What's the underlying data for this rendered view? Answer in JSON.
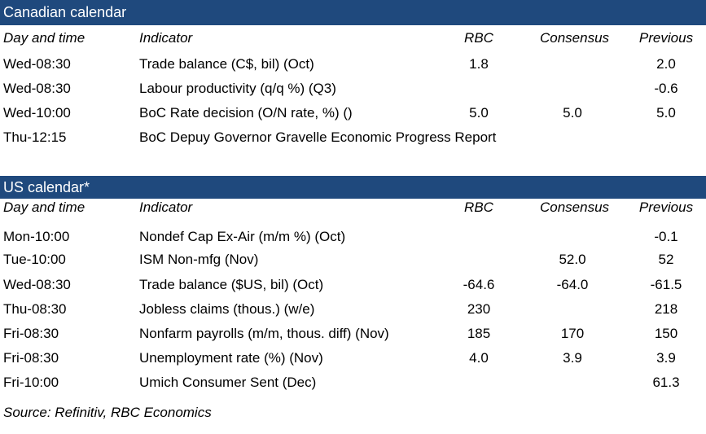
{
  "canadian": {
    "title": "Canadian calendar",
    "headers": {
      "day": "Day and time",
      "indicator": "Indicator",
      "rbc": "RBC",
      "consensus": "Consensus",
      "previous": "Previous"
    },
    "rows": [
      {
        "day": "Wed-08:30",
        "indicator": "Trade balance (C$, bil) (Oct)",
        "rbc": "1.8",
        "consensus": "",
        "previous": "2.0"
      },
      {
        "day": "Wed-08:30",
        "indicator": "Labour productivity (q/q %) (Q3)",
        "rbc": "",
        "consensus": "",
        "previous": "-0.6"
      },
      {
        "day": "Wed-10:00",
        "indicator": "BoC Rate decision (O/N rate, %) ()",
        "rbc": "5.0",
        "consensus": "5.0",
        "previous": "5.0"
      },
      {
        "day": "Thu-12:15",
        "indicator": "BoC Depuy Governor Gravelle Economic Progress Report",
        "rbc": "",
        "consensus": "",
        "previous": ""
      }
    ]
  },
  "us": {
    "title": "US calendar*",
    "headers": {
      "day": "Day and time",
      "indicator": "Indicator",
      "rbc": "RBC",
      "consensus": "Consensus",
      "previous": "Previous"
    },
    "rows": [
      {
        "day": "Mon-10:00",
        "indicator": "Nondef Cap Ex-Air (m/m %) (Oct)",
        "rbc": "",
        "consensus": "",
        "previous": "-0.1"
      },
      {
        "day": "Tue-10:00",
        "indicator": "ISM Non-mfg (Nov)",
        "rbc": "",
        "consensus": "52.0",
        "previous": "52"
      },
      {
        "day": "Wed-08:30",
        "indicator": "Trade balance ($US, bil) (Oct)",
        "rbc": "-64.6",
        "consensus": "-64.0",
        "previous": "-61.5"
      },
      {
        "day": "Thu-08:30",
        "indicator": "Jobless claims (thous.) (w/e)",
        "rbc": "230",
        "consensus": "",
        "previous": "218"
      },
      {
        "day": "Fri-08:30",
        "indicator": "Nonfarm payrolls (m/m, thous. diff) (Nov)",
        "rbc": "185",
        "consensus": "170",
        "previous": "150"
      },
      {
        "day": "Fri-08:30",
        "indicator": "Unemployment rate (%) (Nov)",
        "rbc": "4.0",
        "consensus": "3.9",
        "previous": "3.9"
      },
      {
        "day": "Fri-10:00",
        "indicator": "Umich Consumer Sent (Dec)",
        "rbc": "",
        "consensus": "",
        "previous": "61.3"
      }
    ]
  },
  "source": "Source: Refinitiv,  RBC Economics",
  "colors": {
    "header_bar": "#1f497d"
  }
}
